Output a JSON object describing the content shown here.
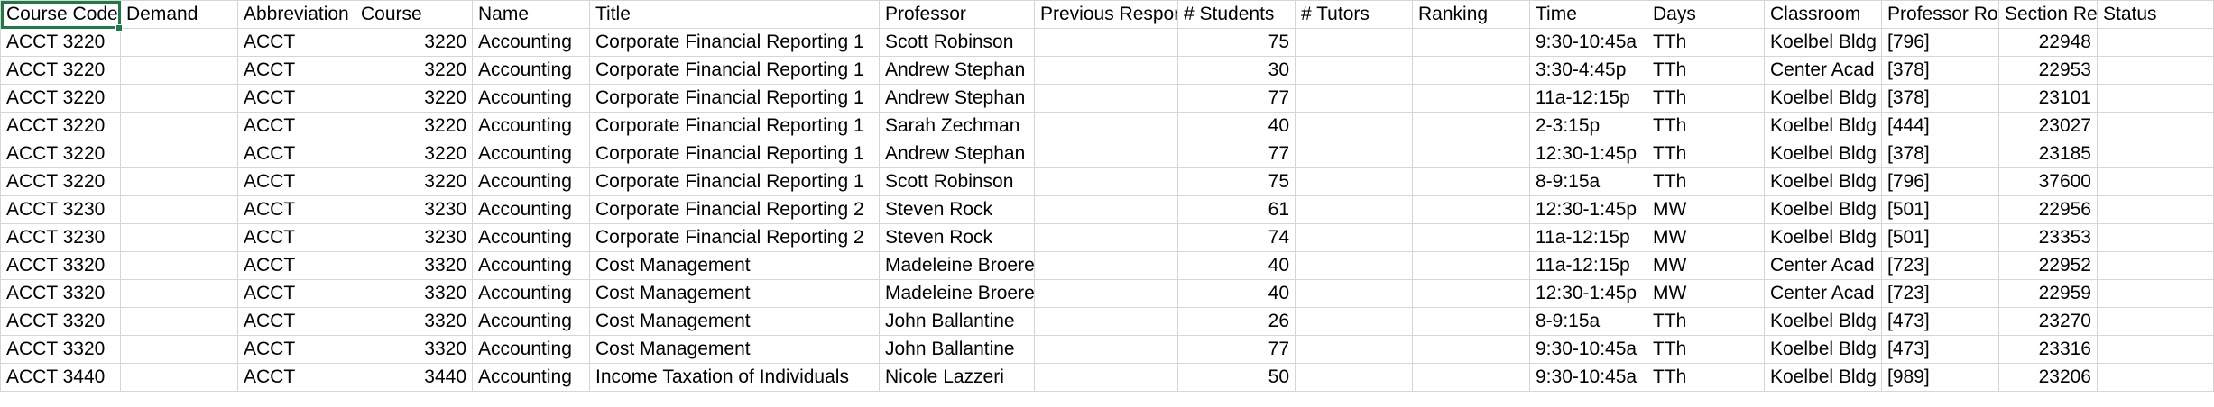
{
  "headers": [
    "Course Code",
    "Demand",
    "Abbreviation",
    "Course",
    "Name",
    "Title",
    "Professor",
    "Previous Respor",
    "# Students",
    "# Tutors",
    "Ranking",
    "Time",
    "Days",
    "Classroom",
    "Professor Ro",
    "Section Refe",
    "Status"
  ],
  "rows": [
    [
      "ACCT 3220",
      "",
      "ACCT",
      "3220",
      "Accounting",
      "Corporate Financial Reporting 1",
      "Scott Robinson",
      "",
      "75",
      "",
      "",
      "9:30-10:45a",
      "TTh",
      "Koelbel Bldg",
      "[796]",
      "22948",
      ""
    ],
    [
      "ACCT 3220",
      "",
      "ACCT",
      "3220",
      "Accounting",
      "Corporate Financial Reporting 1",
      "Andrew Stephan",
      "",
      "30",
      "",
      "",
      "3:30-4:45p",
      "TTh",
      "Center Acad",
      "[378]",
      "22953",
      ""
    ],
    [
      "ACCT 3220",
      "",
      "ACCT",
      "3220",
      "Accounting",
      "Corporate Financial Reporting 1",
      "Andrew Stephan",
      "",
      "77",
      "",
      "",
      "11a-12:15p",
      "TTh",
      "Koelbel Bldg",
      "[378]",
      "23101",
      ""
    ],
    [
      "ACCT 3220",
      "",
      "ACCT",
      "3220",
      "Accounting",
      "Corporate Financial Reporting 1",
      "Sarah Zechman",
      "",
      "40",
      "",
      "",
      "2-3:15p",
      "TTh",
      "Koelbel Bldg",
      "[444]",
      "23027",
      ""
    ],
    [
      "ACCT 3220",
      "",
      "ACCT",
      "3220",
      "Accounting",
      "Corporate Financial Reporting 1",
      "Andrew Stephan",
      "",
      "77",
      "",
      "",
      "12:30-1:45p",
      "TTh",
      "Koelbel Bldg",
      "[378]",
      "23185",
      ""
    ],
    [
      "ACCT 3220",
      "",
      "ACCT",
      "3220",
      "Accounting",
      "Corporate Financial Reporting 1",
      "Scott Robinson",
      "",
      "75",
      "",
      "",
      "8-9:15a",
      "TTh",
      "Koelbel Bldg",
      "[796]",
      "37600",
      ""
    ],
    [
      "ACCT 3230",
      "",
      "ACCT",
      "3230",
      "Accounting",
      "Corporate Financial Reporting 2",
      "Steven Rock",
      "",
      "61",
      "",
      "",
      "12:30-1:45p",
      "MW",
      "Koelbel Bldg",
      "[501]",
      "22956",
      ""
    ],
    [
      "ACCT 3230",
      "",
      "ACCT",
      "3230",
      "Accounting",
      "Corporate Financial Reporting 2",
      "Steven Rock",
      "",
      "74",
      "",
      "",
      "11a-12:15p",
      "MW",
      "Koelbel Bldg",
      "[501]",
      "23353",
      ""
    ],
    [
      "ACCT 3320",
      "",
      "ACCT",
      "3320",
      "Accounting",
      "Cost Management",
      "Madeleine Broeren",
      "",
      "40",
      "",
      "",
      "11a-12:15p",
      "MW",
      "Center Acad",
      "[723]",
      "22952",
      ""
    ],
    [
      "ACCT 3320",
      "",
      "ACCT",
      "3320",
      "Accounting",
      "Cost Management",
      "Madeleine Broeren",
      "",
      "40",
      "",
      "",
      "12:30-1:45p",
      "MW",
      "Center Acad",
      "[723]",
      "22959",
      ""
    ],
    [
      "ACCT 3320",
      "",
      "ACCT",
      "3320",
      "Accounting",
      "Cost Management",
      "John Ballantine",
      "",
      "26",
      "",
      "",
      "8-9:15a",
      "TTh",
      "Koelbel Bldg",
      "[473]",
      "23270",
      ""
    ],
    [
      "ACCT 3320",
      "",
      "ACCT",
      "3320",
      "Accounting",
      "Cost Management",
      "John Ballantine",
      "",
      "77",
      "",
      "",
      "9:30-10:45a",
      "TTh",
      "Koelbel Bldg",
      "[473]",
      "23316",
      ""
    ],
    [
      "ACCT 3440",
      "",
      "ACCT",
      "3440",
      "Accounting",
      "Income Taxation of Individuals",
      "Nicole Lazzeri",
      "",
      "50",
      "",
      "",
      "9:30-10:45a",
      "TTh",
      "Koelbel Bldg",
      "[989]",
      "23206",
      ""
    ]
  ],
  "numeric_columns": [
    3,
    8,
    15
  ],
  "colors": {
    "grid": "#d6d6d6",
    "selection": "#1f7a45"
  }
}
